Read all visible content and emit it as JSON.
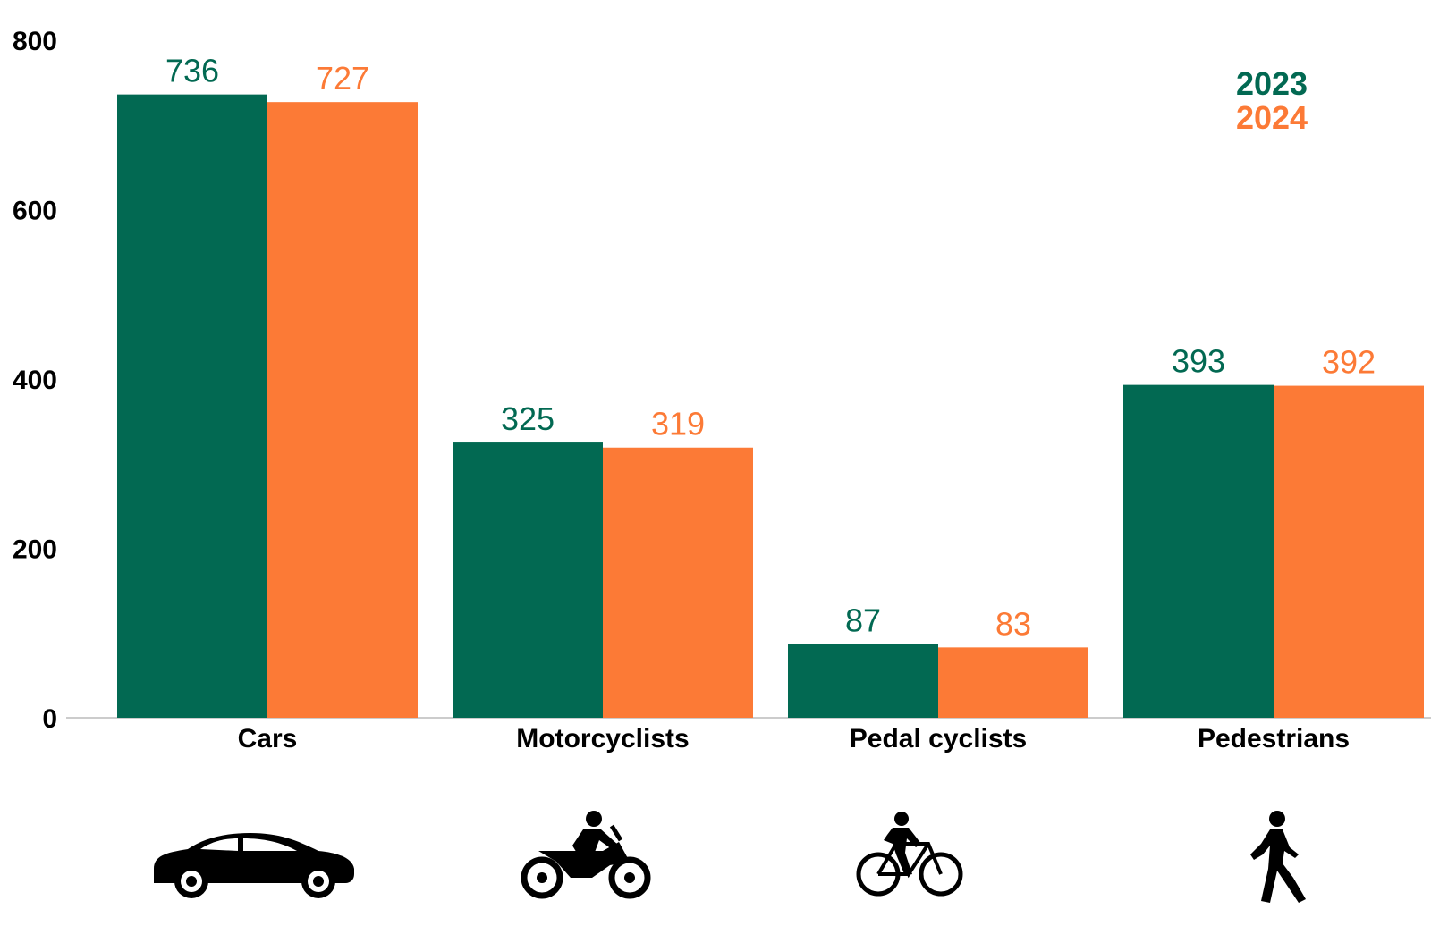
{
  "chart_data": {
    "type": "bar",
    "categories": [
      "Cars",
      "Motorcyclists",
      "Pedal cyclists",
      "Pedestrians"
    ],
    "category_icons": [
      "car-icon",
      "motorcycle-icon",
      "bicycle-icon",
      "pedestrian-icon"
    ],
    "series": [
      {
        "name": "2023",
        "color": "#026952",
        "values": [
          736,
          325,
          87,
          393
        ]
      },
      {
        "name": "2024",
        "color": "#FC7A36",
        "values": [
          727,
          319,
          83,
          392
        ]
      }
    ],
    "y_ticks": [
      0,
      200,
      400,
      600,
      800
    ],
    "ylim": [
      0,
      840
    ],
    "grid": false,
    "legend_position": "top-right"
  }
}
